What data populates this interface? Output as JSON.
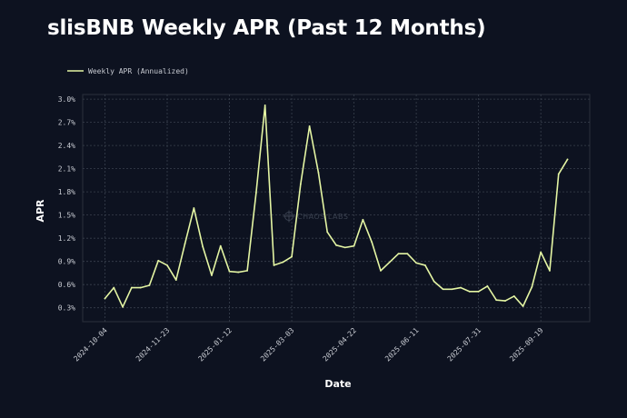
{
  "colors": {
    "background": "#0d1220",
    "line": "#e4f5a3",
    "grid": "#39404d",
    "frame": "#2a303b"
  },
  "chart_data": {
    "type": "line",
    "title": "slisBNB Weekly APR (Past 12 Months)",
    "xlabel": "Date",
    "ylabel": "APR",
    "legend": {
      "position": "top-left",
      "label": "Weekly APR (Annualized)"
    },
    "watermark": "CHAOS LABS",
    "ylim": [
      0.12,
      3.06
    ],
    "yticks": [
      0.3,
      0.6,
      0.9,
      1.2,
      1.5,
      1.8,
      2.1,
      2.4,
      2.7,
      3.0
    ],
    "ytick_labels": [
      "0.3%",
      "0.6%",
      "0.9%",
      "1.2%",
      "1.5%",
      "1.8%",
      "2.1%",
      "2.4%",
      "2.7%",
      "3.0%"
    ],
    "x_range": [
      -2.5,
      54.5
    ],
    "xticks": [
      0,
      7,
      14,
      21,
      28,
      35,
      42,
      49
    ],
    "xtick_labels": [
      "2024-10-04",
      "2024-11-23",
      "2025-01-12",
      "2025-03-03",
      "2025-04-22",
      "2025-06-11",
      "2025-07-31",
      "2025-09-19"
    ],
    "grid": true,
    "series": [
      {
        "name": "Weekly APR (Annualized)",
        "x": [
          0,
          1,
          2,
          3,
          4,
          5,
          6,
          7,
          8,
          9,
          10,
          11,
          12,
          13,
          14,
          15,
          16,
          17,
          18,
          19,
          20,
          21,
          22,
          23,
          24,
          25,
          26,
          27,
          28,
          29,
          30,
          31,
          32,
          33,
          34,
          35,
          36,
          37,
          38,
          39,
          40,
          41,
          42,
          43,
          44,
          45,
          46,
          47,
          48,
          49,
          50,
          51,
          52
        ],
        "values": [
          0.42,
          0.56,
          0.31,
          0.56,
          0.56,
          0.59,
          0.91,
          0.85,
          0.66,
          1.13,
          1.59,
          1.09,
          0.72,
          1.1,
          0.77,
          0.76,
          0.78,
          1.79,
          2.92,
          0.85,
          0.89,
          0.96,
          1.9,
          2.65,
          2.05,
          1.28,
          1.11,
          1.08,
          1.1,
          1.44,
          1.15,
          0.78,
          0.89,
          1.0,
          1.0,
          0.88,
          0.85,
          0.64,
          0.54,
          0.54,
          0.56,
          0.51,
          0.51,
          0.58,
          0.4,
          0.39,
          0.45,
          0.32,
          0.57,
          1.02,
          0.78,
          2.03,
          2.22
        ]
      }
    ]
  }
}
